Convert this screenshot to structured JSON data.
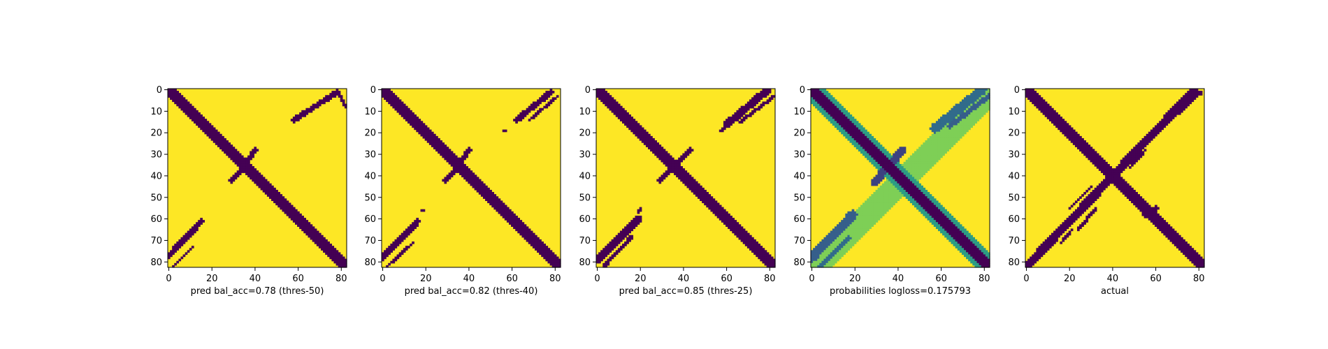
{
  "colors": {
    "background": "#440154",
    "foreground": "#fde725",
    "colormap": [
      "#440154",
      "#3b528b",
      "#21918c",
      "#5ec962",
      "#fde725"
    ]
  },
  "chart_data": [
    {
      "type": "heatmap",
      "title": "",
      "xlabel": "pred bal_acc=0.78 (thres-50)",
      "ylabel": "",
      "xlim": [
        0,
        82
      ],
      "ylim": [
        82,
        0
      ],
      "xticks": [
        "0",
        "20",
        "40",
        "60",
        "80"
      ],
      "yticks": [
        "0",
        "10",
        "20",
        "30",
        "40",
        "50",
        "60",
        "70",
        "80"
      ],
      "matrix_size": 83,
      "value_range": [
        0,
        1
      ],
      "bands": [
        {
          "x1": 0,
          "y1": 0,
          "x2": 82,
          "y2": 82,
          "width": 2.5,
          "value": 0
        },
        {
          "x1": 58,
          "y1": 14,
          "x2": 78,
          "y2": 1,
          "width": 1.2,
          "value": 0
        },
        {
          "x1": 79,
          "y1": 2,
          "x2": 82,
          "y2": 8,
          "width": 0.6,
          "value": 0
        },
        {
          "x1": 0,
          "y1": 77,
          "x2": 15,
          "y2": 61,
          "width": 1.3,
          "value": 0
        },
        {
          "x1": 2,
          "y1": 82,
          "x2": 11,
          "y2": 73,
          "width": 0.6,
          "value": 0
        },
        {
          "x1": 29,
          "y1": 42,
          "x2": 33,
          "y2": 38,
          "width": 1.0,
          "value": 0
        },
        {
          "x1": 37,
          "y1": 32,
          "x2": 40,
          "y2": 28,
          "width": 1.0,
          "value": 0
        }
      ]
    },
    {
      "type": "heatmap",
      "title": "",
      "xlabel": "pred bal_acc=0.82 (thres-40)",
      "ylabel": "",
      "xlim": [
        0,
        82
      ],
      "ylim": [
        82,
        0
      ],
      "xticks": [
        "0",
        "20",
        "40",
        "60",
        "80"
      ],
      "yticks": [
        "0",
        "10",
        "20",
        "30",
        "40",
        "50",
        "60",
        "70",
        "80"
      ],
      "matrix_size": 83,
      "value_range": [
        0,
        1
      ],
      "bands": [
        {
          "x1": 0,
          "y1": 0,
          "x2": 82,
          "y2": 82,
          "width": 2.5,
          "value": 0
        },
        {
          "x1": 62,
          "y1": 14,
          "x2": 78,
          "y2": 1,
          "width": 1.3,
          "value": 0
        },
        {
          "x1": 68,
          "y1": 14,
          "x2": 81,
          "y2": 3,
          "width": 0.6,
          "value": 0
        },
        {
          "x1": 0,
          "y1": 78,
          "x2": 16,
          "y2": 61,
          "width": 1.4,
          "value": 0
        },
        {
          "x1": 2,
          "y1": 82,
          "x2": 14,
          "y2": 71,
          "width": 0.6,
          "value": 0
        },
        {
          "x1": 29,
          "y1": 42,
          "x2": 33,
          "y2": 38,
          "width": 1.0,
          "value": 0
        },
        {
          "x1": 37,
          "y1": 32,
          "x2": 40,
          "y2": 28,
          "width": 1.0,
          "value": 0
        },
        {
          "x1": 56,
          "y1": 19,
          "x2": 57,
          "y2": 19,
          "width": 0.4,
          "value": 0
        },
        {
          "x1": 18,
          "y1": 56,
          "x2": 19,
          "y2": 56,
          "width": 0.4,
          "value": 0
        }
      ]
    },
    {
      "type": "heatmap",
      "title": "",
      "xlabel": "pred bal_acc=0.85 (thres-25)",
      "ylabel": "",
      "xlim": [
        0,
        82
      ],
      "ylim": [
        82,
        0
      ],
      "xticks": [
        "0",
        "20",
        "40",
        "60",
        "80"
      ],
      "yticks": [
        "0",
        "10",
        "20",
        "30",
        "40",
        "50",
        "60",
        "70",
        "80"
      ],
      "matrix_size": 83,
      "value_range": [
        0,
        1
      ],
      "bands": [
        {
          "x1": 0,
          "y1": 0,
          "x2": 82,
          "y2": 82,
          "width": 2.8,
          "value": 0
        },
        {
          "x1": 60,
          "y1": 16,
          "x2": 79,
          "y2": 0,
          "width": 1.7,
          "value": 0
        },
        {
          "x1": 66,
          "y1": 15,
          "x2": 82,
          "y2": 3,
          "width": 0.8,
          "value": 0
        },
        {
          "x1": 0,
          "y1": 79,
          "x2": 19,
          "y2": 60,
          "width": 1.7,
          "value": 0
        },
        {
          "x1": 3,
          "y1": 82,
          "x2": 16,
          "y2": 68,
          "width": 0.8,
          "value": 0
        },
        {
          "x1": 29,
          "y1": 42,
          "x2": 43,
          "y2": 28,
          "width": 1.4,
          "value": 0
        },
        {
          "x1": 57,
          "y1": 19,
          "x2": 59,
          "y2": 18,
          "width": 0.6,
          "value": 0
        },
        {
          "x1": 19,
          "y1": 57,
          "x2": 20,
          "y2": 55,
          "width": 0.6,
          "value": 0
        }
      ]
    },
    {
      "type": "heatmap",
      "title": "",
      "xlabel": "probabilities logloss=0.175793",
      "ylabel": "",
      "xlim": [
        0,
        82
      ],
      "ylim": [
        82,
        0
      ],
      "xticks": [
        "0",
        "20",
        "40",
        "60",
        "80"
      ],
      "yticks": [
        "0",
        "10",
        "20",
        "30",
        "40",
        "50",
        "60",
        "70",
        "80"
      ],
      "matrix_size": 83,
      "value_range": [
        0,
        1
      ],
      "bands": [
        {
          "x1": 0,
          "y1": 0,
          "x2": 82,
          "y2": 82,
          "width": 4.5,
          "value": 0.55
        },
        {
          "x1": 0,
          "y1": 0,
          "x2": 82,
          "y2": 82,
          "width": 2.2,
          "value": 0
        },
        {
          "x1": 2,
          "y1": 82,
          "x2": 82,
          "y2": 2,
          "width": 5.5,
          "value": 0.8
        },
        {
          "x1": 57,
          "y1": 18,
          "x2": 79,
          "y2": 0,
          "width": 2.2,
          "value": 0.35
        },
        {
          "x1": 64,
          "y1": 17,
          "x2": 82,
          "y2": 3,
          "width": 1.2,
          "value": 0.3
        },
        {
          "x1": 0,
          "y1": 78,
          "x2": 19,
          "y2": 58,
          "width": 2.2,
          "value": 0.3
        },
        {
          "x1": 4,
          "y1": 82,
          "x2": 17,
          "y2": 69,
          "width": 1.2,
          "value": 0.35
        },
        {
          "x1": 29,
          "y1": 43,
          "x2": 42,
          "y2": 28,
          "width": 1.8,
          "value": 0.2
        }
      ]
    },
    {
      "type": "heatmap",
      "title": "",
      "xlabel": "actual",
      "ylabel": "",
      "xlim": [
        0,
        82
      ],
      "ylim": [
        82,
        0
      ],
      "xticks": [
        "0",
        "20",
        "40",
        "60",
        "80"
      ],
      "yticks": [
        "0",
        "10",
        "20",
        "30",
        "40",
        "50",
        "60",
        "70",
        "80"
      ],
      "matrix_size": 83,
      "value_range": [
        0,
        1
      ],
      "bands": [
        {
          "x1": 0,
          "y1": 0,
          "x2": 82,
          "y2": 82,
          "width": 2.2,
          "value": 0
        },
        {
          "x1": 0,
          "y1": 82,
          "x2": 78,
          "y2": 0,
          "width": 1.9,
          "value": 0
        },
        {
          "x1": 62,
          "y1": 18,
          "x2": 81,
          "y2": 1,
          "width": 0.8,
          "value": 0
        },
        {
          "x1": 20,
          "y1": 55,
          "x2": 30,
          "y2": 45,
          "width": 0.7,
          "value": 0
        },
        {
          "x1": 24,
          "y1": 65,
          "x2": 32,
          "y2": 55,
          "width": 0.7,
          "value": 0
        },
        {
          "x1": 48,
          "y1": 36,
          "x2": 55,
          "y2": 28,
          "width": 0.6,
          "value": 0
        },
        {
          "x1": 16,
          "y1": 71,
          "x2": 21,
          "y2": 65,
          "width": 0.6,
          "value": 0
        },
        {
          "x1": 55,
          "y1": 58,
          "x2": 60,
          "y2": 55,
          "width": 1.2,
          "value": 0
        },
        {
          "x1": 26,
          "y1": 25,
          "x2": 29,
          "y2": 27,
          "width": 1.0,
          "value": 0
        }
      ]
    }
  ]
}
